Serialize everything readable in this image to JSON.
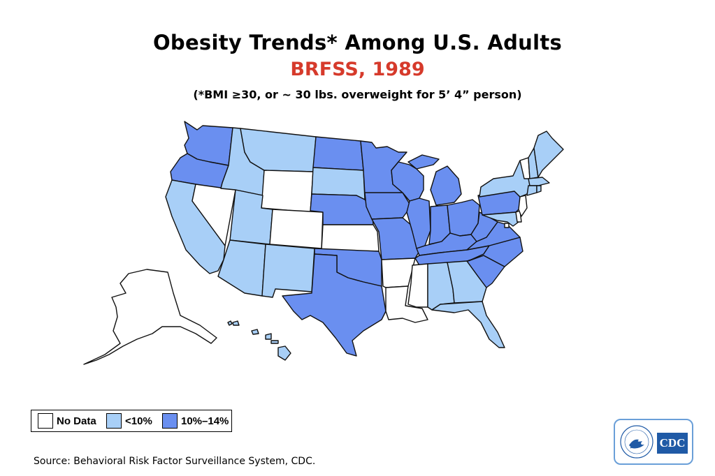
{
  "header": {
    "title": "Obesity Trends* Among U.S. Adults",
    "subtitle": "BRFSS, 1989",
    "note": "(*BMI ≥30, or ~ 30 lbs. overweight for 5’ 4” person)"
  },
  "colors": {
    "no_data": "#ffffff",
    "lt10": "#a8cff7",
    "p10_14": "#6a8ff0",
    "subtitle": "#d63a2b"
  },
  "legend": [
    {
      "key": "no_data",
      "label": "No Data"
    },
    {
      "key": "lt10",
      "label": "<10%"
    },
    {
      "key": "p10_14",
      "label": "10%–14%"
    }
  ],
  "states": {
    "WA": "p10_14",
    "OR": "p10_14",
    "CA": "lt10",
    "NV": "no_data",
    "ID": "lt10",
    "MT": "lt10",
    "WY": "no_data",
    "UT": "lt10",
    "CO": "no_data",
    "AZ": "lt10",
    "NM": "lt10",
    "ND": "p10_14",
    "SD": "lt10",
    "NE": "p10_14",
    "KS": "no_data",
    "OK": "p10_14",
    "TX": "p10_14",
    "MN": "p10_14",
    "IA": "p10_14",
    "MO": "p10_14",
    "AR": "no_data",
    "LA": "no_data",
    "WI": "p10_14",
    "IL": "p10_14",
    "MI": "p10_14",
    "IN": "p10_14",
    "OH": "p10_14",
    "KY": "p10_14",
    "TN": "p10_14",
    "MS": "no_data",
    "AL": "lt10",
    "GA": "lt10",
    "FL": "lt10",
    "SC": "p10_14",
    "NC": "p10_14",
    "VA": "p10_14",
    "WV": "p10_14",
    "PA": "p10_14",
    "NY": "lt10",
    "VT": "no_data",
    "NH": "lt10",
    "ME": "lt10",
    "MA": "lt10",
    "CT": "lt10",
    "RI": "lt10",
    "NJ": "no_data",
    "DE": "no_data",
    "MD": "lt10",
    "DC": "no_data",
    "AK": "no_data",
    "HI": "lt10"
  },
  "source": "Source: Behavioral Risk Factor Surveillance System, CDC.",
  "logo": {
    "text": "CDC"
  }
}
